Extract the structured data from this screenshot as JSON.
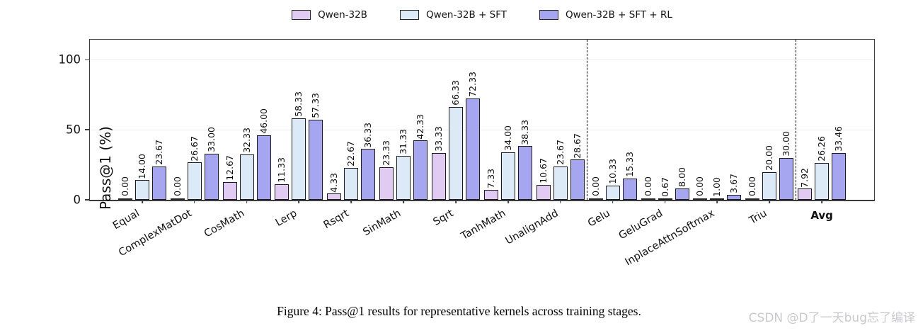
{
  "chart_data": {
    "type": "bar",
    "title": "",
    "xlabel": "",
    "ylabel": "Pass@1 (%)",
    "ylim": [
      0,
      114.5
    ],
    "yticks": [
      0,
      50,
      100
    ],
    "grid": "horizontal",
    "legend_position": "top",
    "categories": [
      "Equal",
      "ComplexMatDot",
      "CosMath",
      "Lerp",
      "Rsqrt",
      "SinMath",
      "Sqrt",
      "TanhMath",
      "UnalignAdd",
      "Gelu",
      "GeluGrad",
      "InplaceAttnSoftmax",
      "Triu",
      "Avg"
    ],
    "series": [
      {
        "name": "Qwen-32B",
        "color": "#e1cbf2",
        "values": [
          0.0,
          0.0,
          12.67,
          11.33,
          4.33,
          23.33,
          33.33,
          7.33,
          10.67,
          0.0,
          0.0,
          0.0,
          0.0,
          7.92
        ]
      },
      {
        "name": "Qwen-32B + SFT",
        "color": "#dce9f7",
        "values": [
          14.0,
          26.67,
          32.33,
          58.33,
          22.67,
          31.33,
          66.33,
          34.0,
          23.67,
          10.33,
          0.67,
          1.0,
          20.0,
          26.26
        ]
      },
      {
        "name": "Qwen-32B + SFT + RL",
        "color": "#a6a6f0",
        "values": [
          23.67,
          33.0,
          46.0,
          57.33,
          36.33,
          42.33,
          72.33,
          38.33,
          28.67,
          15.33,
          8.0,
          3.67,
          30.0,
          33.46
        ]
      }
    ],
    "separators_after_category_index": [
      8,
      12
    ],
    "bold_categories": [
      "Avg"
    ]
  },
  "axis": {
    "y_label": "Pass@1 (%)"
  },
  "caption": "Figure 4: Pass@1 results for representative kernels across training stages.",
  "watermark": "CSDN @D了一天bug忘了编译"
}
